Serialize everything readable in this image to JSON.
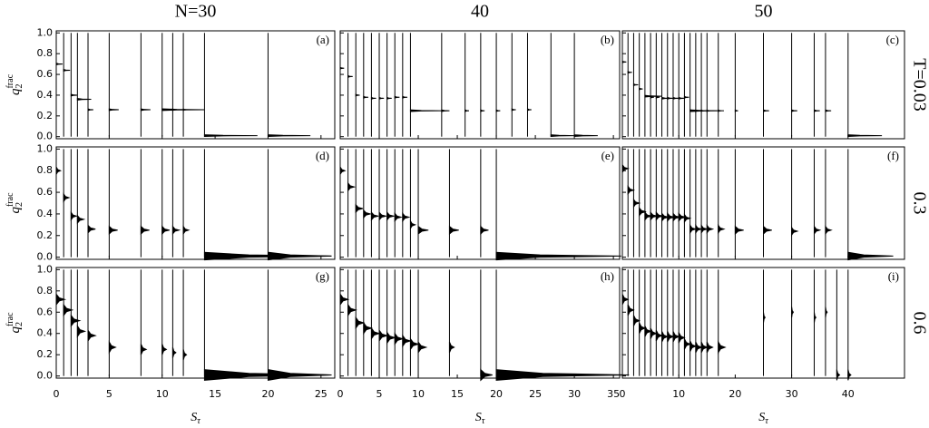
{
  "chart_data": [
    {
      "type": "spectrum",
      "title": "N=30",
      "label": "(a)",
      "ylabel": "q",
      "ylabel_sub": "2",
      "ylabel_sup": "frac",
      "xlim": [
        0,
        26.3
      ],
      "xticks": [
        0,
        5,
        10,
        15,
        20,
        25
      ],
      "ylim": [
        -0.02,
        1.02
      ],
      "yticks": [
        {
          "value": 0,
          "label": "0.0"
        },
        0.2,
        0.4,
        0.6,
        0.8,
        {
          "value": 1,
          "label": "1.0"
        }
      ],
      "x": [
        0,
        0.7,
        1.4,
        2,
        3,
        5,
        8,
        10,
        11,
        12,
        14,
        20
      ],
      "values": [
        0.7,
        0.64,
        0.4,
        0.36,
        0.26,
        0.26,
        0.26,
        0.26,
        0.26,
        0.26,
        0.01,
        0.01
      ],
      "widths": [
        0.6,
        0.6,
        0.6,
        1.3,
        0.5,
        0.9,
        0.9,
        4,
        0.3,
        0.3,
        5,
        4
      ]
    },
    {
      "type": "spectrum",
      "title": "40",
      "label": "(b)",
      "xlim": [
        0,
        35.8
      ],
      "xticks": [
        0,
        5,
        10,
        15,
        20,
        25,
        30,
        35
      ],
      "ylim": [
        -0.02,
        1.02
      ],
      "yticks": [
        0,
        0.2,
        0.4,
        0.6,
        0.8,
        1
      ],
      "x": [
        0,
        1,
        2,
        3,
        4,
        5,
        6,
        7,
        8,
        9,
        13,
        16,
        18,
        20,
        22,
        24,
        27,
        30
      ],
      "values": [
        0.66,
        0.58,
        0.4,
        0.38,
        0.37,
        0.37,
        0.37,
        0.38,
        0.38,
        0.25,
        0.25,
        0.25,
        0.25,
        0.25,
        0.26,
        0.26,
        0.01,
        0.01
      ],
      "widths": [
        0.5,
        0.6,
        0.5,
        0.6,
        0.6,
        0.6,
        0.6,
        0.6,
        0.6,
        4,
        1,
        0.5,
        0.5,
        0.5,
        0.5,
        0.5,
        3,
        3
      ]
    },
    {
      "type": "spectrum",
      "title": "50",
      "label": "(c)",
      "row_label": "T=0.03",
      "xlim": [
        0,
        50
      ],
      "xticks": [
        0,
        10,
        20,
        30,
        40
      ],
      "ylim": [
        -0.02,
        1.02
      ],
      "yticks": [
        0,
        0.2,
        0.4,
        0.6,
        0.8,
        1
      ],
      "x": [
        0,
        1,
        2,
        3,
        4,
        5,
        6,
        7,
        8,
        9,
        10,
        11,
        12,
        13,
        14,
        15,
        17,
        20,
        25,
        30,
        34,
        36,
        40
      ],
      "values": [
        0.72,
        0.62,
        0.5,
        0.46,
        0.39,
        0.38,
        0.38,
        0.37,
        0.37,
        0.37,
        0.37,
        0.38,
        0.25,
        0.25,
        0.25,
        0.25,
        0.25,
        0.25,
        0.25,
        0.25,
        0.25,
        0.25,
        0.01
      ],
      "widths": [
        0.7,
        0.7,
        0.8,
        0.6,
        3,
        0.6,
        0.6,
        1.5,
        1,
        1,
        1,
        0.8,
        6,
        0.5,
        0.5,
        0.5,
        0.5,
        0.5,
        1,
        1,
        1,
        1,
        6
      ]
    },
    {
      "type": "spectrum",
      "label": "(d)",
      "ylabel": "q",
      "ylabel_sub": "2",
      "ylabel_sup": "frac",
      "xlim": [
        0,
        26.3
      ],
      "xticks": [
        0,
        5,
        10,
        15,
        20,
        25
      ],
      "ylim": [
        -0.02,
        1.02
      ],
      "yticks": [
        {
          "value": 0,
          "label": "0.0"
        },
        0.2,
        0.4,
        0.6,
        0.8,
        {
          "value": 1,
          "label": "1.0"
        }
      ],
      "x": [
        0,
        0.7,
        1.4,
        2,
        3,
        5,
        8,
        10,
        11,
        12,
        14,
        20
      ],
      "values": [
        0.8,
        0.55,
        0.38,
        0.35,
        0.26,
        0.25,
        0.25,
        0.25,
        0.25,
        0.25,
        0.01,
        0.01
      ],
      "widths": [
        0.4,
        0.5,
        0.5,
        0.6,
        0.7,
        0.8,
        0.8,
        0.7,
        0.6,
        0.5,
        12,
        6
      ]
    },
    {
      "type": "spectrum",
      "label": "(e)",
      "xlim": [
        0,
        35.8
      ],
      "xticks": [
        0,
        5,
        10,
        15,
        20,
        25,
        30,
        35
      ],
      "ylim": [
        -0.02,
        1.02
      ],
      "yticks": [
        0,
        0.2,
        0.4,
        0.6,
        0.8,
        1
      ],
      "x": [
        0,
        1,
        2,
        3,
        4,
        5,
        6,
        7,
        8,
        9,
        10,
        14,
        18,
        20
      ],
      "values": [
        0.8,
        0.65,
        0.45,
        0.4,
        0.38,
        0.38,
        0.38,
        0.37,
        0.37,
        0.3,
        0.25,
        0.25,
        0.25,
        0.01
      ],
      "widths": [
        0.6,
        0.8,
        0.9,
        0.9,
        0.9,
        0.9,
        0.9,
        0.8,
        0.8,
        0.6,
        1.3,
        1.2,
        1,
        16
      ]
    },
    {
      "type": "spectrum",
      "label": "(f)",
      "row_label": "0.3",
      "xlim": [
        0,
        50
      ],
      "xticks": [
        0,
        10,
        20,
        30,
        40
      ],
      "ylim": [
        -0.02,
        1.02
      ],
      "yticks": [
        0,
        0.2,
        0.4,
        0.6,
        0.8,
        1
      ],
      "x": [
        0,
        1,
        2,
        3,
        4,
        5,
        6,
        7,
        8,
        9,
        10,
        11,
        12,
        13,
        14,
        15,
        17,
        20,
        25,
        30,
        34,
        36,
        40
      ],
      "values": [
        0.82,
        0.62,
        0.5,
        0.42,
        0.38,
        0.38,
        0.38,
        0.37,
        0.37,
        0.37,
        0.37,
        0.36,
        0.26,
        0.26,
        0.26,
        0.26,
        0.26,
        0.25,
        0.25,
        0.24,
        0.25,
        0.25,
        0.01
      ],
      "widths": [
        1,
        1,
        1,
        1.2,
        1.2,
        1.2,
        1.2,
        1.2,
        1.2,
        1.2,
        1.2,
        1,
        1,
        1,
        1,
        1,
        1,
        1.5,
        1.5,
        1,
        1,
        1,
        8
      ]
    },
    {
      "type": "spectrum",
      "label": "(g)",
      "ylabel": "q",
      "ylabel_sub": "2",
      "ylabel_sup": "frac",
      "xlabel": "S",
      "xlabel_sub": "τ",
      "xlim": [
        0,
        26.3
      ],
      "xticks": [
        0,
        5,
        10,
        15,
        20,
        25
      ],
      "ylim": [
        -0.02,
        1.02
      ],
      "yticks": [
        {
          "value": 0,
          "label": "0.0"
        },
        0.2,
        0.4,
        0.6,
        0.8,
        {
          "value": 1,
          "label": "1.0"
        }
      ],
      "x": [
        0,
        0.7,
        1.4,
        2,
        3,
        5,
        8,
        10,
        11,
        12,
        14,
        20
      ],
      "values": [
        0.72,
        0.62,
        0.52,
        0.42,
        0.38,
        0.27,
        0.25,
        0.25,
        0.22,
        0.2,
        0.01,
        0.01
      ],
      "widths": [
        0.8,
        0.8,
        0.8,
        0.7,
        0.7,
        0.6,
        0.5,
        0.4,
        0.3,
        0.3,
        12,
        6
      ]
    },
    {
      "type": "spectrum",
      "label": "(h)",
      "xlabel": "S",
      "xlabel_sub": "τ",
      "xlim": [
        0,
        35.8
      ],
      "xticks": [
        0,
        5,
        10,
        15,
        20,
        25,
        30,
        35
      ],
      "ylim": [
        -0.02,
        1.02
      ],
      "yticks": [
        0,
        0.2,
        0.4,
        0.6,
        0.8,
        1
      ],
      "x": [
        0,
        1,
        2,
        3,
        4,
        5,
        6,
        7,
        8,
        9,
        10,
        14,
        18,
        20
      ],
      "values": [
        0.72,
        0.62,
        0.5,
        0.45,
        0.4,
        0.38,
        0.36,
        0.35,
        0.33,
        0.3,
        0.27,
        0.27,
        0.01,
        0.01
      ],
      "widths": [
        1,
        1,
        1,
        1,
        1,
        1,
        1,
        1,
        1,
        1,
        1,
        0.6,
        1.5,
        17
      ]
    },
    {
      "type": "spectrum",
      "label": "(i)",
      "row_label": "0.6",
      "xlabel": "S",
      "xlabel_sub": "τ",
      "xlim": [
        0,
        50
      ],
      "xticks": [
        0,
        10,
        20,
        30,
        40
      ],
      "ylim": [
        -0.02,
        1.02
      ],
      "yticks": [
        0,
        0.2,
        0.4,
        0.6,
        0.8,
        1
      ],
      "x": [
        0,
        1,
        2,
        3,
        4,
        5,
        6,
        7,
        8,
        9,
        10,
        11,
        12,
        13,
        14,
        15,
        17,
        25,
        30,
        34,
        36,
        38,
        40
      ],
      "values": [
        0.72,
        0.62,
        0.52,
        0.45,
        0.42,
        0.4,
        0.38,
        0.37,
        0.37,
        0.37,
        0.36,
        0.3,
        0.28,
        0.27,
        0.27,
        0.27,
        0.27,
        0.55,
        0.6,
        0.55,
        0.6,
        0.01,
        0.01
      ],
      "widths": [
        1,
        1,
        1,
        1,
        1,
        1,
        1,
        1,
        1,
        1,
        1,
        1,
        1,
        1,
        1,
        1,
        1.2,
        0.3,
        0.3,
        0.3,
        0.3,
        0.5,
        0.5
      ]
    }
  ]
}
